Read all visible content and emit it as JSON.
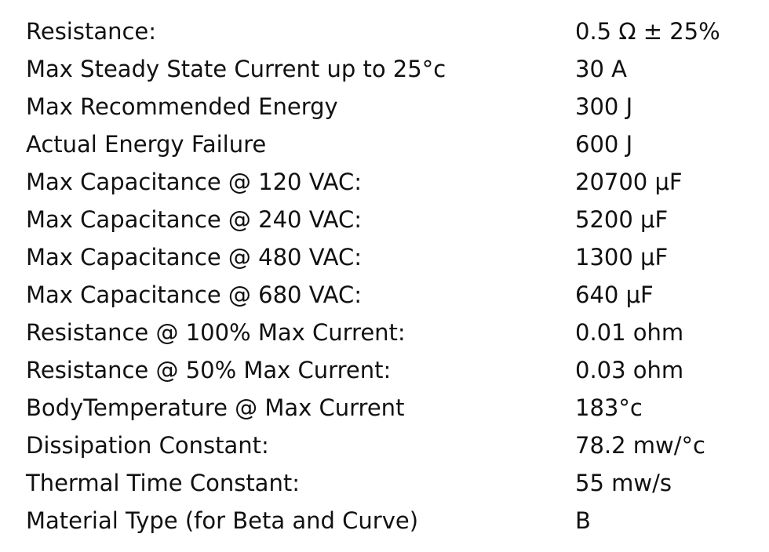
{
  "specs": [
    {
      "label": "Resistance:",
      "value": "0.5 Ω ± 25%"
    },
    {
      "label": "Max Steady State Current up to 25°c",
      "value": "30 A"
    },
    {
      "label": "Max Recommended Energy",
      "value": "300 J"
    },
    {
      "label": "Actual Energy Failure",
      "value": "600 J"
    },
    {
      "label": "Max Capacitance @ 120 VAC:",
      "value": "20700 μF"
    },
    {
      "label": "Max Capacitance @ 240 VAC:",
      "value": "5200 μF"
    },
    {
      "label": "Max Capacitance @ 480 VAC:",
      "value": "1300 μF"
    },
    {
      "label": "Max Capacitance @ 680 VAC:",
      "value": "640 μF"
    },
    {
      "label": "Resistance @ 100% Max Current:",
      "value": "0.01 ohm"
    },
    {
      "label": "Resistance @ 50% Max Current:",
      "value": "0.03 ohm"
    },
    {
      "label": "BodyTemperature @ Max Current",
      "value": "183°c"
    },
    {
      "label": "Dissipation Constant:",
      "value": "78.2 mw/°c"
    },
    {
      "label": "Thermal Time Constant:",
      "value": "55 mw/s"
    },
    {
      "label": "Material Type (for Beta and Curve)",
      "value": "B"
    }
  ]
}
